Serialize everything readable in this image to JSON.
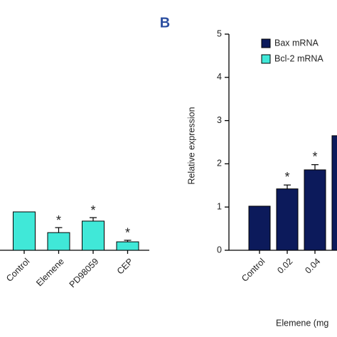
{
  "chart_data": [
    {
      "type": "bar",
      "categories": [
        "Control",
        "Elemene",
        "PD98059",
        "CEP"
      ],
      "values": [
        1,
        0.46,
        0.76,
        0.22
      ],
      "errors": [
        null,
        0.13,
        0.09,
        0.04
      ],
      "significance": [
        null,
        "*",
        "*",
        "*"
      ],
      "color": "#40e8d8"
    },
    {
      "type": "bar",
      "panel_label": "B",
      "y_label": "Relative expression",
      "x_label": "Elemene (mg",
      "categories": [
        "Control",
        "0.02",
        "0.04",
        null
      ],
      "series": [
        {
          "name": "Bax mRNA",
          "color": "#0c1a5b",
          "values": [
            1.02,
            1.42,
            1.86,
            2.65
          ],
          "errors": [
            null,
            0.09,
            0.12,
            null
          ]
        },
        {
          "name": "Bcl-2 mRNA",
          "color": "#40e8d8",
          "values": [
            null,
            null,
            null,
            null
          ]
        }
      ],
      "significance": [
        null,
        "*",
        "*",
        null
      ],
      "ylim": [
        0,
        5
      ],
      "yticks": [
        0,
        1,
        2,
        3,
        4,
        5
      ]
    }
  ]
}
